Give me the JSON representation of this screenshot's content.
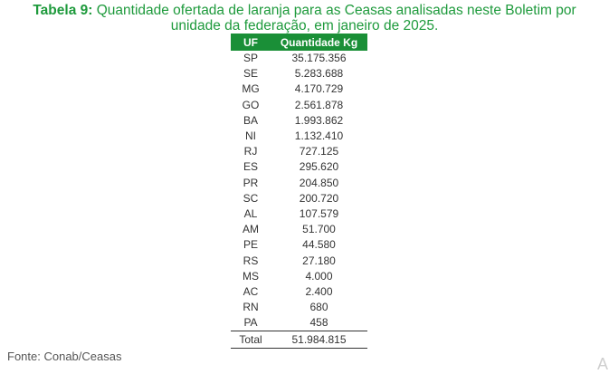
{
  "caption": {
    "label": "Tabela 9:",
    "line1": "Quantidade ofertada de laranja para as Ceasas analisadas neste Boletim por",
    "line2": "unidade da federação, em janeiro de 2025."
  },
  "table": {
    "headers": [
      "UF",
      "Quantidade Kg"
    ],
    "rows": [
      [
        "SP",
        "35.175.356"
      ],
      [
        "SE",
        "5.283.688"
      ],
      [
        "MG",
        "4.170.729"
      ],
      [
        "GO",
        "2.561.878"
      ],
      [
        "BA",
        "1.993.862"
      ],
      [
        "NI",
        "1.132.410"
      ],
      [
        "RJ",
        "727.125"
      ],
      [
        "ES",
        "295.620"
      ],
      [
        "PR",
        "204.850"
      ],
      [
        "SC",
        "200.720"
      ],
      [
        "AL",
        "107.579"
      ],
      [
        "AM",
        "51.700"
      ],
      [
        "PE",
        "44.580"
      ],
      [
        "RS",
        "27.180"
      ],
      [
        "MS",
        "4.000"
      ],
      [
        "AC",
        "2.400"
      ],
      [
        "RN",
        "680"
      ],
      [
        "PA",
        "458"
      ]
    ],
    "total": {
      "label": "Total",
      "value": "51.984.815"
    }
  },
  "source": "Fonte: Conab/Ceasas",
  "watermark": "A",
  "colors": {
    "accent": "#1a8f37",
    "caption": "#1e9a3c"
  }
}
